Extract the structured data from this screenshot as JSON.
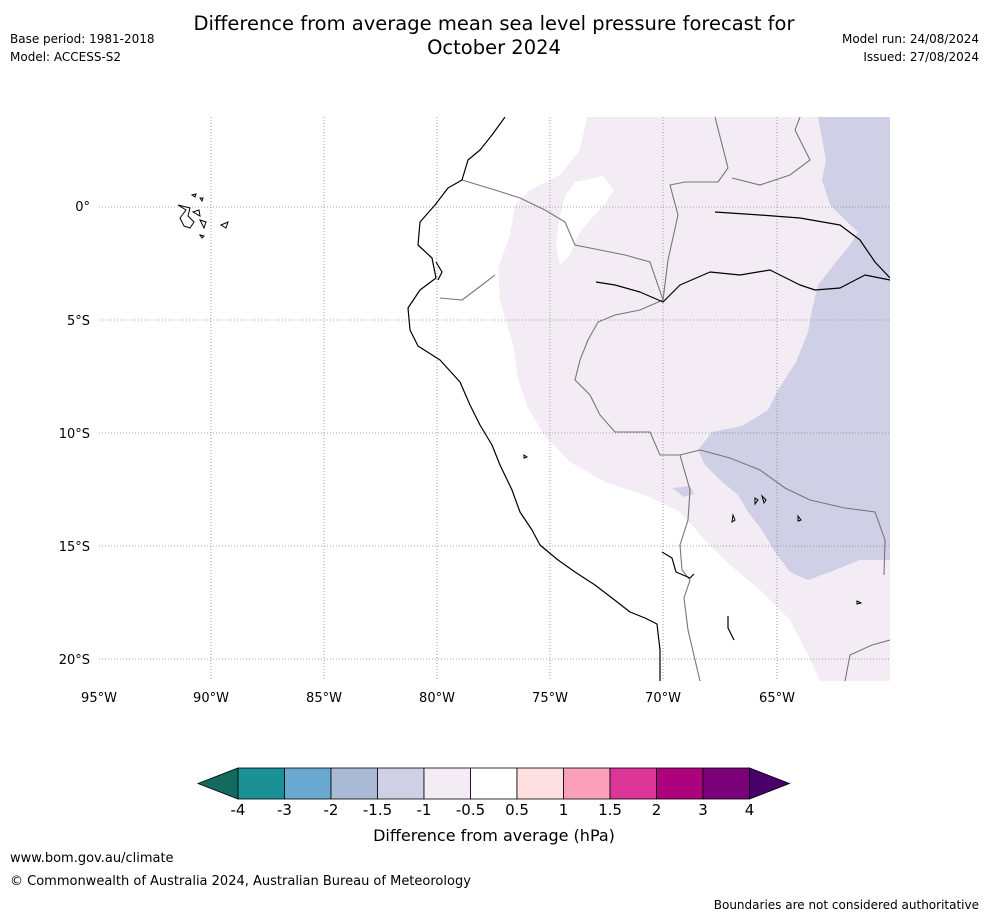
{
  "title_line1": "Difference from average mean sea level pressure forecast for",
  "title_line2": "October 2024",
  "base_period": "Base period: 1981-2018",
  "model": "Model: ACCESS-S2",
  "model_run": "Model run: 24/08/2024",
  "issued": "Issued: 27/08/2024",
  "map": {
    "lon_labels": [
      "95°W",
      "90°W",
      "85°W",
      "80°W",
      "75°W",
      "70°W",
      "65°W"
    ],
    "lat_labels": [
      "0°",
      "5°S",
      "10°S",
      "15°S",
      "20°S"
    ],
    "lon_values": [
      -95,
      -90,
      -85,
      -80,
      -75,
      -70,
      -65
    ],
    "lat_values": [
      0,
      -5,
      -10,
      -15,
      -20
    ],
    "extent": {
      "lon_min": -95,
      "lon_max": -60,
      "lat_min": -21,
      "lat_max": 4
    },
    "gridlines": true
  },
  "colorbar": {
    "label": "Difference from average (hPa)",
    "tick_labels": [
      "-4",
      "-3",
      "-2",
      "-1.5",
      "-1",
      "-0.5",
      "0.5",
      "1",
      "1.5",
      "2",
      "3",
      "4"
    ],
    "colors": [
      "#126b5e",
      "#1a9196",
      "#69a9d1",
      "#a9b9d6",
      "#cfd0e6",
      "#f3ecf5",
      "#ffffff",
      "#fde0df",
      "#faa0bc",
      "#dd3497",
      "#ae017e",
      "#7a0177",
      "#49006a"
    ]
  },
  "footer": {
    "website": "www.bom.gov.au/climate",
    "copyright": "© Commonwealth of Australia 2024, Australian Bureau of Meteorology",
    "note": "Boundaries are not considered authoritative"
  }
}
